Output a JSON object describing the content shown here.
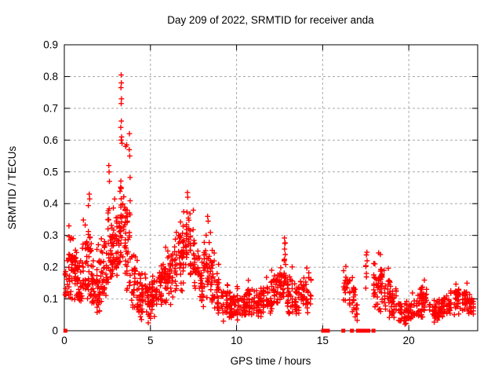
{
  "chart_data": {
    "type": "scatter",
    "title": "Day 209 of 2022, SRMTID for receiver anda",
    "xlabel": "GPS time / hours",
    "ylabel": "SRMTID / TECUs",
    "xlim": [
      0,
      24
    ],
    "ylim": [
      0,
      0.9
    ],
    "xticks": [
      0,
      5,
      10,
      15,
      20
    ],
    "xtick_labels": [
      "0",
      "5",
      "10",
      "15",
      "20"
    ],
    "yticks": [
      0,
      0.1,
      0.2,
      0.3,
      0.4,
      0.5,
      0.6,
      0.7,
      0.8,
      0.9
    ],
    "ytick_labels": [
      "0",
      "0.1",
      "0.2",
      "0.3",
      "0.4",
      "0.5",
      "0.6",
      "0.7",
      "0.8",
      "0.9"
    ],
    "grid": true,
    "legend": "none",
    "marker": "plus",
    "marker_color": "#ff0000",
    "zero_marker": "filled-square",
    "data_gaps": [
      [
        14.35,
        15.0
      ],
      [
        15.55,
        16.2
      ],
      [
        17.1,
        17.5
      ],
      [
        17.65,
        17.9
      ]
    ],
    "zero_marker_hours": [
      0.06,
      15.03,
      15.12,
      15.3,
      16.2,
      16.7,
      17.05,
      17.15,
      17.28,
      17.4,
      17.52,
      17.65,
      17.95
    ],
    "band_segments": [
      [
        0.03,
        0.15,
        0.09,
        0.25,
        0.15,
        10
      ],
      [
        0.15,
        0.45,
        0.1,
        0.33,
        0.18,
        30
      ],
      [
        0.45,
        0.75,
        0.09,
        0.35,
        0.17,
        30
      ],
      [
        0.75,
        1.05,
        0.08,
        0.3,
        0.16,
        30
      ],
      [
        1.05,
        1.35,
        0.1,
        0.38,
        0.2,
        30
      ],
      [
        1.35,
        1.6,
        0.1,
        0.43,
        0.22,
        28
      ],
      [
        1.6,
        1.9,
        0.07,
        0.28,
        0.15,
        30
      ],
      [
        1.9,
        2.2,
        0.05,
        0.33,
        0.14,
        30
      ],
      [
        2.2,
        2.5,
        0.1,
        0.4,
        0.2,
        28
      ],
      [
        2.5,
        2.7,
        0.15,
        0.52,
        0.28,
        22
      ],
      [
        2.7,
        3.0,
        0.15,
        0.45,
        0.26,
        30
      ],
      [
        3.0,
        3.22,
        0.16,
        0.46,
        0.28,
        24
      ],
      [
        3.22,
        3.42,
        0.2,
        0.62,
        0.35,
        26
      ],
      [
        3.42,
        3.6,
        0.15,
        0.58,
        0.3,
        20
      ],
      [
        3.6,
        3.9,
        0.12,
        0.57,
        0.26,
        28
      ],
      [
        3.9,
        4.15,
        0.05,
        0.35,
        0.16,
        24
      ],
      [
        4.15,
        4.45,
        0.04,
        0.25,
        0.12,
        26
      ],
      [
        4.45,
        4.75,
        0.03,
        0.18,
        0.1,
        26
      ],
      [
        4.75,
        5.05,
        0.02,
        0.18,
        0.09,
        26
      ],
      [
        5.05,
        5.35,
        0.04,
        0.2,
        0.11,
        26
      ],
      [
        5.35,
        5.65,
        0.06,
        0.24,
        0.13,
        26
      ],
      [
        5.65,
        5.95,
        0.07,
        0.28,
        0.15,
        26
      ],
      [
        5.95,
        6.25,
        0.08,
        0.3,
        0.17,
        26
      ],
      [
        6.25,
        6.55,
        0.1,
        0.32,
        0.19,
        26
      ],
      [
        6.55,
        6.85,
        0.12,
        0.36,
        0.23,
        26
      ],
      [
        6.85,
        7.05,
        0.15,
        0.4,
        0.27,
        20
      ],
      [
        7.05,
        7.3,
        0.17,
        0.44,
        0.3,
        24
      ],
      [
        7.3,
        7.55,
        0.13,
        0.38,
        0.25,
        22
      ],
      [
        7.55,
        7.85,
        0.09,
        0.3,
        0.19,
        26
      ],
      [
        7.85,
        8.1,
        0.07,
        0.25,
        0.14,
        24
      ],
      [
        8.1,
        8.5,
        0.1,
        0.36,
        0.21,
        34
      ],
      [
        8.5,
        8.8,
        0.07,
        0.3,
        0.16,
        26
      ],
      [
        8.8,
        9.1,
        0.05,
        0.22,
        0.12,
        26
      ],
      [
        9.1,
        9.5,
        0.03,
        0.15,
        0.09,
        30
      ],
      [
        9.5,
        10.0,
        0.02,
        0.13,
        0.07,
        36
      ],
      [
        10.0,
        10.5,
        0.03,
        0.14,
        0.08,
        38
      ],
      [
        10.5,
        11.0,
        0.03,
        0.17,
        0.09,
        38
      ],
      [
        11.0,
        11.5,
        0.04,
        0.16,
        0.09,
        38
      ],
      [
        11.5,
        12.0,
        0.05,
        0.18,
        0.1,
        38
      ],
      [
        12.0,
        12.45,
        0.06,
        0.2,
        0.12,
        34
      ],
      [
        12.45,
        12.7,
        0.08,
        0.22,
        0.14,
        20
      ],
      [
        12.7,
        12.9,
        0.1,
        0.3,
        0.18,
        18
      ],
      [
        12.9,
        13.3,
        0.05,
        0.22,
        0.12,
        32
      ],
      [
        13.3,
        13.7,
        0.05,
        0.18,
        0.1,
        32
      ],
      [
        13.7,
        14.35,
        0.05,
        0.21,
        0.12,
        46
      ],
      [
        16.2,
        16.6,
        0.05,
        0.21,
        0.12,
        26
      ],
      [
        16.6,
        16.9,
        0.04,
        0.18,
        0.1,
        18
      ],
      [
        16.9,
        17.1,
        0.03,
        0.12,
        0.07,
        8
      ],
      [
        17.5,
        17.62,
        0.1,
        0.25,
        0.17,
        6
      ],
      [
        17.9,
        18.2,
        0.05,
        0.22,
        0.12,
        22
      ],
      [
        18.2,
        18.6,
        0.06,
        0.25,
        0.14,
        30
      ],
      [
        18.6,
        19.0,
        0.04,
        0.2,
        0.11,
        28
      ],
      [
        19.0,
        19.4,
        0.03,
        0.17,
        0.09,
        28
      ],
      [
        19.4,
        19.8,
        0.02,
        0.12,
        0.06,
        28
      ],
      [
        19.8,
        20.2,
        0.02,
        0.1,
        0.06,
        28
      ],
      [
        20.2,
        20.6,
        0.03,
        0.12,
        0.07,
        28
      ],
      [
        20.6,
        21.2,
        0.04,
        0.17,
        0.1,
        40
      ],
      [
        21.2,
        21.6,
        0.02,
        0.1,
        0.06,
        26
      ],
      [
        21.6,
        22.0,
        0.03,
        0.13,
        0.07,
        28
      ],
      [
        22.0,
        22.4,
        0.04,
        0.14,
        0.08,
        28
      ],
      [
        22.4,
        23.0,
        0.05,
        0.16,
        0.1,
        40
      ],
      [
        23.0,
        23.4,
        0.04,
        0.15,
        0.09,
        28
      ],
      [
        23.4,
        23.75,
        0.03,
        0.13,
        0.08,
        24
      ]
    ],
    "peak_points": [
      [
        3.3,
        0.805
      ],
      [
        3.31,
        0.78
      ],
      [
        3.29,
        0.765
      ],
      [
        3.32,
        0.73
      ],
      [
        3.3,
        0.715
      ],
      [
        3.31,
        0.66
      ],
      [
        3.28,
        0.64
      ],
      [
        3.33,
        0.61
      ],
      [
        3.3,
        0.6
      ],
      [
        3.35,
        0.59
      ],
      [
        3.56,
        0.58
      ],
      [
        3.62,
        0.585
      ],
      [
        3.78,
        0.62
      ],
      [
        3.77,
        0.57
      ],
      [
        3.8,
        0.55
      ],
      [
        2.58,
        0.52
      ],
      [
        2.6,
        0.5
      ],
      [
        2.62,
        0.47
      ],
      [
        1.45,
        0.43
      ],
      [
        1.47,
        0.415
      ],
      [
        7.15,
        0.435
      ],
      [
        7.17,
        0.42
      ],
      [
        8.32,
        0.36
      ],
      [
        8.35,
        0.345
      ],
      [
        12.78,
        0.292
      ],
      [
        12.8,
        0.275
      ],
      [
        12.79,
        0.257
      ],
      [
        17.57,
        0.247
      ],
      [
        17.58,
        0.22
      ],
      [
        0.27,
        0.33
      ],
      [
        18.25,
        0.245
      ],
      [
        18.35,
        0.24
      ]
    ]
  }
}
